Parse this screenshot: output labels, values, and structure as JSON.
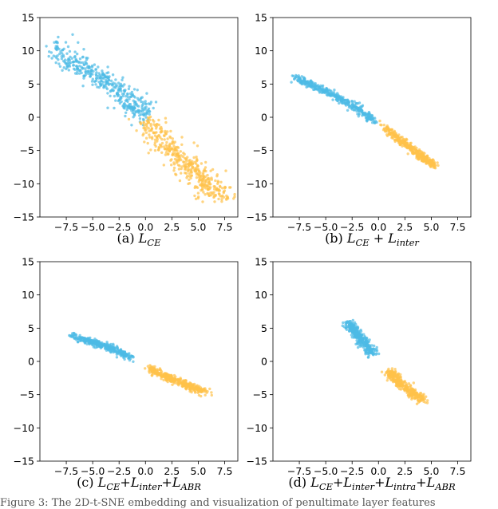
{
  "chart_data": [
    {
      "type": "scatter",
      "title": "",
      "caption": {
        "prefix": "(a) ",
        "terms": [
          {
            "base": "L",
            "sub": "CE"
          }
        ],
        "separators": []
      },
      "xlim": [
        -10,
        8.75
      ],
      "ylim": [
        -15,
        15
      ],
      "xticks": [
        -7.5,
        -5.0,
        -2.5,
        0.0,
        2.5,
        5.0,
        7.5
      ],
      "xtick_labels": [
        "−7.5",
        "−5.0",
        "−2.5",
        "0.0",
        "2.5",
        "5.0",
        "7.5"
      ],
      "yticks": [
        -15,
        -10,
        -5,
        0,
        5,
        10,
        15
      ],
      "ytick_labels": [
        "−15",
        "−10",
        "−5",
        "0",
        "5",
        "10",
        "15"
      ],
      "grid": false,
      "series": [
        {
          "color": "#4dbbe6",
          "count": 420,
          "spread_along": 2.2,
          "spread_across": 0.75,
          "seed": 11,
          "x": [
            -9.0,
            -7.5,
            -6.0,
            -4.5,
            -3.0,
            -2.0,
            -1.0,
            0.0
          ],
          "y": [
            10.8,
            9.0,
            7.5,
            6.0,
            4.6,
            3.0,
            1.5,
            0.5
          ]
        },
        {
          "color": "#ffc24a",
          "count": 420,
          "spread_along": 2.2,
          "spread_across": 0.75,
          "seed": 23,
          "x": [
            0.0,
            1.5,
            2.5,
            3.5,
            4.5,
            5.5,
            6.5,
            7.5
          ],
          "y": [
            -0.5,
            -3.0,
            -4.8,
            -6.5,
            -8.0,
            -9.5,
            -10.8,
            -12.2
          ]
        }
      ]
    },
    {
      "type": "scatter",
      "title": "",
      "caption": {
        "prefix": "(b) ",
        "terms": [
          {
            "base": "L",
            "sub": "CE"
          },
          {
            "base": "L",
            "sub": "inter"
          }
        ],
        "separators": [
          " + "
        ]
      },
      "xlim": [
        -10,
        8.75
      ],
      "ylim": [
        -15,
        15
      ],
      "xticks": [
        -7.5,
        -5.0,
        -2.5,
        0.0,
        2.5,
        5.0,
        7.5
      ],
      "xtick_labels": [
        "−7.5",
        "−5.0",
        "−2.5",
        "0.0",
        "2.5",
        "5.0",
        "7.5"
      ],
      "yticks": [
        -15,
        -10,
        -5,
        0,
        5,
        10,
        15
      ],
      "ytick_labels": [
        "−15",
        "−10",
        "−5",
        "0",
        "5",
        "10",
        "15"
      ],
      "grid": false,
      "series": [
        {
          "color": "#4dbbe6",
          "count": 380,
          "spread_along": 1.5,
          "spread_across": 0.25,
          "seed": 31,
          "x": [
            -7.8,
            -6.5,
            -5.0,
            -3.8,
            -2.5,
            -1.5,
            -0.5
          ],
          "y": [
            6.0,
            5.0,
            3.9,
            2.9,
            1.8,
            0.8,
            -0.5
          ]
        },
        {
          "color": "#ffc24a",
          "count": 380,
          "spread_along": 1.5,
          "spread_across": 0.25,
          "seed": 37,
          "x": [
            0.5,
            1.5,
            2.5,
            3.5,
            4.5,
            5.2
          ],
          "y": [
            -1.5,
            -2.8,
            -4.0,
            -5.2,
            -6.4,
            -7.2
          ]
        }
      ]
    },
    {
      "type": "scatter",
      "title": "",
      "caption": {
        "prefix": "(c) ",
        "terms": [
          {
            "base": "L",
            "sub": "CE"
          },
          {
            "base": "L",
            "sub": "inter"
          },
          {
            "base": "L",
            "sub": "ABR"
          }
        ],
        "separators": [
          "+",
          "+"
        ]
      },
      "xlim": [
        -10,
        8.75
      ],
      "ylim": [
        -15,
        15
      ],
      "xticks": [
        -7.5,
        -5.0,
        -2.5,
        0.0,
        2.5,
        5.0,
        7.5
      ],
      "xtick_labels": [
        "−7.5",
        "−5.0",
        "−2.5",
        "0.0",
        "2.5",
        "5.0",
        "7.5"
      ],
      "yticks": [
        -15,
        -10,
        -5,
        0,
        5,
        10,
        15
      ],
      "ytick_labels": [
        "−15",
        "−10",
        "−5",
        "0",
        "5",
        "10",
        "15"
      ],
      "grid": false,
      "series": [
        {
          "color": "#4dbbe6",
          "count": 360,
          "spread_along": 1.6,
          "spread_across": 0.25,
          "seed": 41,
          "x": [
            -6.8,
            -5.5,
            -4.5,
            -3.5,
            -2.5,
            -1.5
          ],
          "y": [
            3.8,
            3.2,
            2.6,
            2.1,
            1.4,
            0.5
          ]
        },
        {
          "color": "#ffc24a",
          "count": 360,
          "spread_along": 1.6,
          "spread_across": 0.25,
          "seed": 43,
          "x": [
            0.5,
            1.5,
            2.5,
            3.5,
            4.5,
            5.5
          ],
          "y": [
            -1.0,
            -2.0,
            -2.7,
            -3.3,
            -3.9,
            -4.5
          ]
        }
      ]
    },
    {
      "type": "scatter",
      "title": "",
      "caption": {
        "prefix": "(d) ",
        "terms": [
          {
            "base": "L",
            "sub": "CE"
          },
          {
            "base": "L",
            "sub": "inter"
          },
          {
            "base": "L",
            "sub": "intra"
          },
          {
            "base": "L",
            "sub": "ABR"
          }
        ],
        "separators": [
          "+",
          "+",
          "+"
        ]
      },
      "xlim": [
        -10,
        8.75
      ],
      "ylim": [
        -15,
        15
      ],
      "xticks": [
        -7.5,
        -5.0,
        -2.5,
        0.0,
        2.5,
        5.0,
        7.5
      ],
      "xtick_labels": [
        "−7.5",
        "−5.0",
        "−2.5",
        "0.0",
        "2.5",
        "5.0",
        "7.5"
      ],
      "yticks": [
        -15,
        -10,
        -5,
        0,
        5,
        10,
        15
      ],
      "ytick_labels": [
        "−15",
        "−10",
        "−5",
        "0",
        "5",
        "10",
        "15"
      ],
      "grid": false,
      "series": [
        {
          "color": "#4dbbe6",
          "count": 340,
          "spread_along": 0.9,
          "spread_across": 0.28,
          "seed": 53,
          "x": [
            -3.0,
            -2.5,
            -2.0,
            -1.5,
            -1.0,
            -0.5
          ],
          "y": [
            6.0,
            5.0,
            4.0,
            3.0,
            2.0,
            1.2
          ]
        },
        {
          "color": "#ffc24a",
          "count": 340,
          "spread_along": 0.9,
          "spread_across": 0.28,
          "seed": 59,
          "x": [
            1.0,
            1.5,
            2.0,
            2.8,
            3.5,
            4.2
          ],
          "y": [
            -1.5,
            -2.4,
            -3.3,
            -4.2,
            -5.0,
            -5.9
          ]
        }
      ]
    }
  ],
  "footer_text": "Figure 3: The 2D-t-SNE embedding and visualization of penultimate layer features"
}
